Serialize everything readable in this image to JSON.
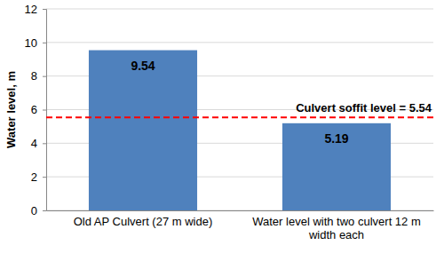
{
  "chart_data": {
    "type": "bar",
    "y_label": "Water level, m",
    "categories": [
      "Old AP Culvert (27 m wide)",
      "Water level with  two culvert 12 m width each"
    ],
    "values": [
      9.54,
      5.19
    ],
    "color": "#4f81bd",
    "ylim": [
      0,
      12
    ],
    "yticks": [
      0,
      2,
      4,
      6,
      8,
      10,
      12
    ],
    "grid": true,
    "data_labels": true,
    "annotations": [
      {
        "text": "Culvert soffit level = 5.54",
        "y": 5.54
      }
    ]
  }
}
